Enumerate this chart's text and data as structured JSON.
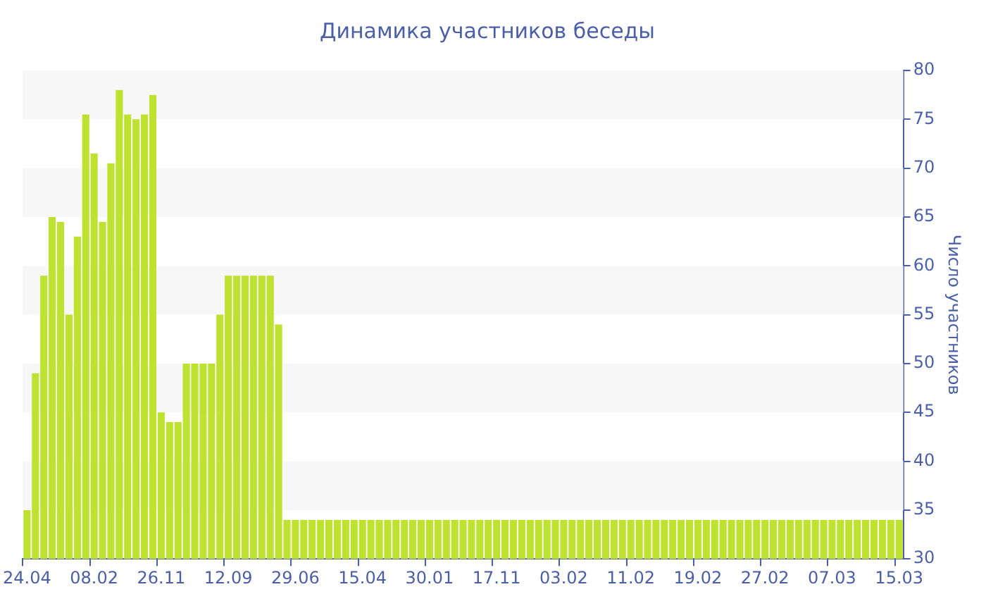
{
  "chart_data": {
    "type": "bar",
    "title": "Динамика участников беседы",
    "ylabel": "Число участников",
    "categories": [
      "24.04",
      null,
      null,
      null,
      null,
      null,
      null,
      null,
      "08.02",
      null,
      null,
      null,
      null,
      null,
      null,
      null,
      "26.11",
      null,
      null,
      null,
      null,
      null,
      null,
      null,
      "12.09",
      null,
      null,
      null,
      null,
      null,
      null,
      null,
      "29.06",
      null,
      null,
      null,
      null,
      null,
      null,
      null,
      "15.04",
      null,
      null,
      null,
      null,
      null,
      null,
      null,
      "30.01",
      null,
      null,
      null,
      null,
      null,
      null,
      null,
      "17.11",
      null,
      null,
      null,
      null,
      null,
      null,
      null,
      "03.02",
      null,
      null,
      null,
      null,
      null,
      null,
      null,
      "11.02",
      null,
      null,
      null,
      null,
      null,
      null,
      null,
      "19.02",
      null,
      null,
      null,
      null,
      null,
      null,
      null,
      "27.02",
      null,
      null,
      null,
      null,
      null,
      null,
      null,
      "07.03",
      null,
      null,
      null,
      null,
      null,
      null,
      null,
      "15.03"
    ],
    "values": [
      35,
      49,
      59,
      65,
      64.5,
      55,
      63,
      75.5,
      71.5,
      64.5,
      70.5,
      78,
      75.5,
      75,
      75.5,
      77.5,
      45,
      44,
      44,
      50,
      50,
      50,
      50,
      55,
      59,
      59,
      59,
      59,
      59,
      59,
      54,
      34,
      34,
      34,
      34,
      34,
      34,
      34,
      34,
      34,
      34,
      34,
      34,
      34,
      34,
      34,
      34,
      34,
      34,
      34,
      34,
      34,
      34,
      34,
      34,
      34,
      34,
      34,
      34,
      34,
      34,
      34,
      34,
      34,
      34,
      34,
      34,
      34,
      34,
      34,
      34,
      34,
      34,
      34,
      34,
      34,
      34,
      34,
      34,
      34,
      34,
      34,
      34,
      34,
      34,
      34,
      34,
      34,
      34,
      34,
      34,
      34,
      34,
      34,
      34,
      34,
      34,
      34,
      34,
      34,
      34,
      34,
      34,
      34,
      34
    ],
    "color": "#bde22f",
    "ylim": [
      30,
      80
    ],
    "yticks": [
      30,
      35,
      40,
      45,
      50,
      55,
      60,
      65,
      70,
      75,
      80
    ],
    "bands": [
      {
        "axis": "y",
        "from": 75,
        "to": 80,
        "color": "#f7f7f7"
      },
      {
        "axis": "y",
        "from": 65,
        "to": 70,
        "color": "#f7f7f7"
      },
      {
        "axis": "y",
        "from": 55,
        "to": 60,
        "color": "#f7f7f7"
      },
      {
        "axis": "y",
        "from": 45,
        "to": 50,
        "color": "#f7f7f7"
      },
      {
        "axis": "y",
        "from": 35,
        "to": 40,
        "color": "#f7f7f7"
      }
    ],
    "legend": false
  }
}
